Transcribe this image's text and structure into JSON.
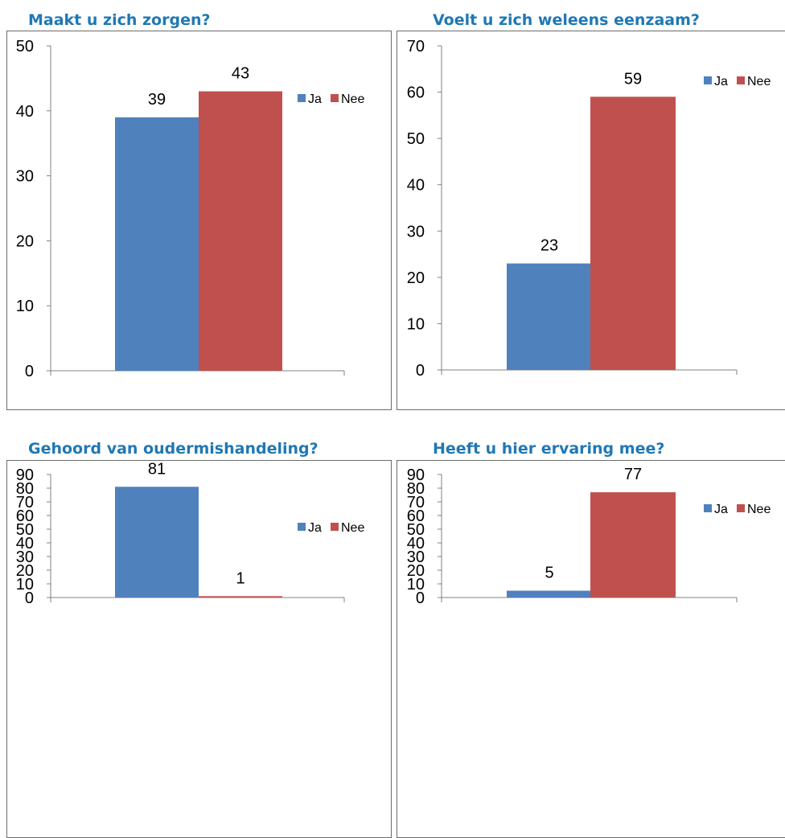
{
  "colors": {
    "ja": "#4f81bd",
    "nee": "#c0504d",
    "title": "#1f78b4",
    "axis": "#808080"
  },
  "chart_data": [
    {
      "type": "bar",
      "title": "Maakt u zich zorgen?",
      "series": [
        {
          "name": "Ja",
          "values": [
            39
          ]
        },
        {
          "name": "Nee",
          "values": [
            43
          ]
        }
      ],
      "ylim": [
        0,
        50
      ],
      "yticks": [
        0,
        10,
        20,
        30,
        40,
        50
      ],
      "grid": false,
      "legend": "right"
    },
    {
      "type": "bar",
      "title": "Voelt u zich weleens eenzaam?",
      "series": [
        {
          "name": "Ja",
          "values": [
            23
          ]
        },
        {
          "name": "Nee",
          "values": [
            59
          ]
        }
      ],
      "ylim": [
        0,
        70
      ],
      "yticks": [
        0,
        10,
        20,
        30,
        40,
        50,
        60,
        70
      ],
      "grid": false,
      "legend": "top-right"
    },
    {
      "type": "bar",
      "title": "Gehoord van oudermishandeling?",
      "series": [
        {
          "name": "Ja",
          "values": [
            81
          ]
        },
        {
          "name": "Nee",
          "values": [
            1
          ]
        }
      ],
      "ylim": [
        0,
        90
      ],
      "yticks": [
        0,
        10,
        20,
        30,
        40,
        50,
        60,
        70,
        80,
        90
      ],
      "grid": false,
      "legend": "right"
    },
    {
      "type": "bar",
      "title": "Heeft u hier ervaring mee?",
      "series": [
        {
          "name": "Ja",
          "values": [
            5
          ]
        },
        {
          "name": "Nee",
          "values": [
            77
          ]
        }
      ],
      "ylim": [
        0,
        90
      ],
      "yticks": [
        0,
        10,
        20,
        30,
        40,
        50,
        60,
        70,
        80,
        90
      ],
      "grid": false,
      "legend": "top-right"
    }
  ]
}
